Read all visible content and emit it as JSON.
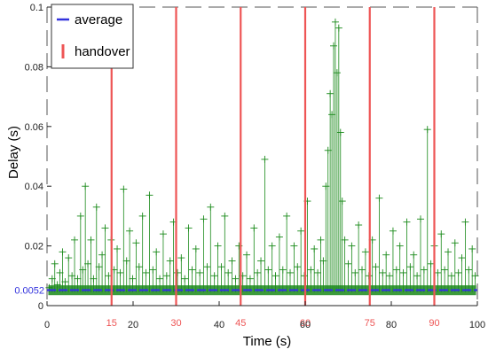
{
  "chart_data": {
    "type": "scatter",
    "xlabel": "Time (s)",
    "ylabel": "Delay (s)",
    "xlim": [
      0,
      100
    ],
    "ylim": [
      0,
      0.1
    ],
    "x_ticks": [
      0,
      20,
      40,
      60,
      80,
      100
    ],
    "y_ticks": [
      0,
      0.02,
      0.04,
      0.06,
      0.08,
      0.1
    ],
    "y_tick_labels": [
      "0",
      "0.02",
      "0.04",
      "0.06",
      "0.08",
      "0.1"
    ],
    "grid": false,
    "legend_position": "top-left",
    "legend": [
      {
        "name": "average",
        "color": "#3333dd",
        "style": "line"
      },
      {
        "name": "handover",
        "color": "#ee5555",
        "style": "bar"
      }
    ],
    "average": {
      "value": 0.0052,
      "label": "0.0052",
      "color": "#3333dd"
    },
    "handovers": {
      "times": [
        15,
        30,
        45,
        60,
        75,
        90
      ],
      "labels": [
        "15",
        "30",
        "45",
        "60",
        "75",
        "90"
      ],
      "color": "#ee5555"
    },
    "delay_series": {
      "color": "#1a8a1a",
      "baseline": 0.0045,
      "points": [
        [
          0.5,
          0.006
        ],
        [
          1.2,
          0.009
        ],
        [
          1.8,
          0.014
        ],
        [
          2.4,
          0.007
        ],
        [
          3.0,
          0.011
        ],
        [
          3.6,
          0.018
        ],
        [
          4.2,
          0.008
        ],
        [
          5.0,
          0.016
        ],
        [
          5.8,
          0.01
        ],
        [
          6.4,
          0.022
        ],
        [
          7.1,
          0.009
        ],
        [
          7.8,
          0.03
        ],
        [
          8.3,
          0.012
        ],
        [
          8.9,
          0.04
        ],
        [
          9.5,
          0.014
        ],
        [
          10.2,
          0.022
        ],
        [
          10.8,
          0.009
        ],
        [
          11.5,
          0.033
        ],
        [
          12.1,
          0.013
        ],
        [
          12.8,
          0.017
        ],
        [
          13.5,
          0.026
        ],
        [
          14.3,
          0.01
        ],
        [
          14.9,
          0.022
        ],
        [
          15.6,
          0.012
        ],
        [
          16.3,
          0.019
        ],
        [
          17.0,
          0.011
        ],
        [
          17.8,
          0.039
        ],
        [
          18.5,
          0.015
        ],
        [
          19.2,
          0.025
        ],
        [
          19.9,
          0.009
        ],
        [
          20.7,
          0.021
        ],
        [
          21.4,
          0.013
        ],
        [
          22.2,
          0.03
        ],
        [
          23.0,
          0.011
        ],
        [
          23.8,
          0.037
        ],
        [
          24.6,
          0.012
        ],
        [
          25.4,
          0.018
        ],
        [
          26.2,
          0.009
        ],
        [
          27.0,
          0.024
        ],
        [
          27.8,
          0.01
        ],
        [
          28.6,
          0.015
        ],
        [
          29.4,
          0.028
        ],
        [
          30.3,
          0.011
        ],
        [
          31.2,
          0.016
        ],
        [
          32.0,
          0.009
        ],
        [
          32.9,
          0.026
        ],
        [
          33.7,
          0.012
        ],
        [
          34.6,
          0.019
        ],
        [
          35.5,
          0.011
        ],
        [
          36.4,
          0.029
        ],
        [
          37.2,
          0.013
        ],
        [
          38.0,
          0.033
        ],
        [
          38.9,
          0.01
        ],
        [
          39.7,
          0.02
        ],
        [
          40.5,
          0.013
        ],
        [
          41.3,
          0.03
        ],
        [
          42.1,
          0.011
        ],
        [
          43.0,
          0.015
        ],
        [
          43.8,
          0.009
        ],
        [
          44.6,
          0.02
        ],
        [
          45.5,
          0.01
        ],
        [
          46.4,
          0.017
        ],
        [
          47.2,
          0.009
        ],
        [
          48.1,
          0.026
        ],
        [
          48.9,
          0.011
        ],
        [
          49.7,
          0.015
        ],
        [
          50.6,
          0.049
        ],
        [
          51.4,
          0.012
        ],
        [
          52.3,
          0.02
        ],
        [
          53.1,
          0.01
        ],
        [
          54.0,
          0.023
        ],
        [
          54.8,
          0.012
        ],
        [
          55.7,
          0.03
        ],
        [
          56.5,
          0.011
        ],
        [
          57.4,
          0.02
        ],
        [
          58.2,
          0.013
        ],
        [
          59.0,
          0.025
        ],
        [
          59.8,
          0.01
        ],
        [
          60.5,
          0.035
        ],
        [
          61.3,
          0.012
        ],
        [
          62.1,
          0.019
        ],
        [
          62.9,
          0.011
        ],
        [
          63.6,
          0.022
        ],
        [
          64.2,
          0.015
        ],
        [
          64.8,
          0.04
        ],
        [
          65.3,
          0.052
        ],
        [
          65.8,
          0.071
        ],
        [
          66.2,
          0.064
        ],
        [
          66.6,
          0.087
        ],
        [
          67.0,
          0.095
        ],
        [
          67.4,
          0.078
        ],
        [
          67.8,
          0.093
        ],
        [
          68.2,
          0.058
        ],
        [
          68.6,
          0.035
        ],
        [
          69.2,
          0.022
        ],
        [
          70.0,
          0.014
        ],
        [
          70.8,
          0.02
        ],
        [
          71.6,
          0.011
        ],
        [
          72.4,
          0.027
        ],
        [
          73.2,
          0.012
        ],
        [
          74.0,
          0.018
        ],
        [
          74.8,
          0.01
        ],
        [
          75.6,
          0.022
        ],
        [
          76.4,
          0.013
        ],
        [
          77.2,
          0.036
        ],
        [
          78.0,
          0.011
        ],
        [
          78.8,
          0.017
        ],
        [
          79.6,
          0.01
        ],
        [
          80.4,
          0.025
        ],
        [
          81.2,
          0.012
        ],
        [
          82.0,
          0.02
        ],
        [
          82.8,
          0.011
        ],
        [
          83.6,
          0.028
        ],
        [
          84.4,
          0.013
        ],
        [
          85.2,
          0.017
        ],
        [
          86.0,
          0.01
        ],
        [
          86.8,
          0.029
        ],
        [
          87.6,
          0.012
        ],
        [
          88.4,
          0.059
        ],
        [
          89.2,
          0.014
        ],
        [
          90.0,
          0.02
        ],
        [
          90.8,
          0.011
        ],
        [
          91.6,
          0.024
        ],
        [
          92.4,
          0.012
        ],
        [
          93.2,
          0.018
        ],
        [
          94.0,
          0.01
        ],
        [
          94.8,
          0.021
        ],
        [
          95.6,
          0.011
        ],
        [
          96.4,
          0.016
        ],
        [
          97.2,
          0.028
        ],
        [
          98.0,
          0.012
        ],
        [
          98.8,
          0.019
        ],
        [
          99.5,
          0.01
        ]
      ]
    }
  }
}
